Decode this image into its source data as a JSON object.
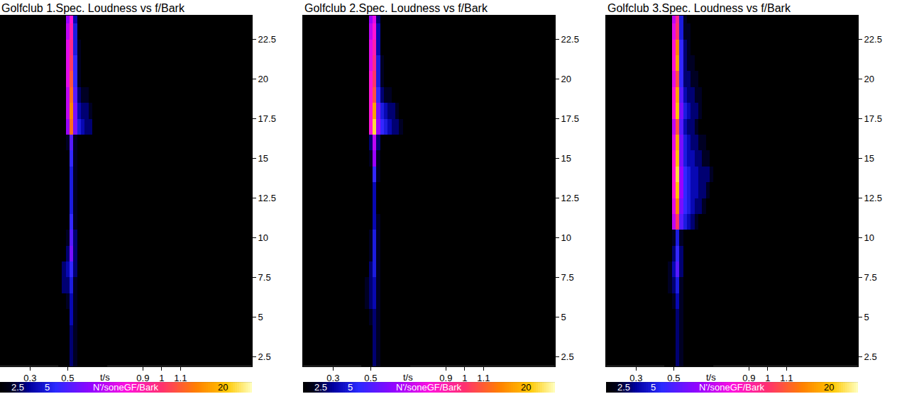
{
  "chart_data": [
    {
      "type": "heatmap",
      "title": "Golfclub 1.Spec. Loudness vs f/Bark",
      "x_label": "t/s",
      "x": [
        0.46,
        0.48,
        0.5,
        0.52,
        0.54,
        0.56,
        0.58,
        0.6,
        0.62,
        0.64,
        0.66,
        0.68,
        0.7
      ],
      "y": [
        2,
        3,
        4,
        5,
        6,
        7,
        8,
        9,
        10,
        11,
        12,
        13,
        14,
        15,
        16,
        17,
        18,
        19,
        20,
        21,
        22,
        23,
        24
      ],
      "z": [
        [
          0,
          0,
          0,
          3,
          2,
          0,
          0,
          0,
          0,
          0,
          0,
          0,
          0
        ],
        [
          0,
          0,
          0,
          3,
          2,
          0,
          0,
          0,
          0,
          0,
          0,
          0,
          0
        ],
        [
          0,
          0,
          1,
          3,
          2,
          0,
          0,
          0,
          0,
          0,
          0,
          0,
          0
        ],
        [
          0,
          0,
          1,
          4,
          2,
          0,
          0,
          0,
          0,
          0,
          0,
          0,
          0
        ],
        [
          0,
          1,
          2,
          4,
          2,
          0,
          0,
          0,
          0,
          0,
          0,
          0,
          0
        ],
        [
          0,
          3,
          3,
          5,
          2,
          1,
          0,
          0,
          0,
          0,
          0,
          0,
          0
        ],
        [
          0,
          3,
          4,
          6,
          3,
          1,
          0,
          0,
          0,
          0,
          0,
          0,
          0
        ],
        [
          0,
          1,
          3,
          8,
          3,
          1,
          0,
          0,
          0,
          0,
          0,
          0,
          0
        ],
        [
          0,
          0,
          2,
          7,
          3,
          0,
          0,
          0,
          0,
          0,
          0,
          0,
          0
        ],
        [
          0,
          0,
          1,
          6,
          2,
          0,
          0,
          0,
          0,
          0,
          0,
          0,
          0
        ],
        [
          0,
          0,
          1,
          5,
          2,
          0,
          0,
          0,
          0,
          0,
          0,
          0,
          0
        ],
        [
          0,
          0,
          1,
          5,
          2,
          0,
          0,
          0,
          0,
          0,
          0,
          0,
          0
        ],
        [
          0,
          0,
          1,
          5,
          2,
          0,
          0,
          0,
          0,
          0,
          0,
          0,
          0
        ],
        [
          0,
          0,
          1,
          6,
          2,
          0,
          0,
          0,
          0,
          0,
          0,
          0,
          0
        ],
        [
          0,
          0,
          2,
          7,
          2,
          0,
          0,
          0,
          0,
          0,
          0,
          0,
          0
        ],
        [
          0,
          0,
          9,
          17,
          8,
          5,
          4,
          3,
          3,
          0,
          0,
          0,
          0
        ],
        [
          0,
          0,
          10,
          18,
          8,
          4,
          3,
          3,
          2,
          0,
          0,
          0,
          0
        ],
        [
          0,
          0,
          10,
          17,
          7,
          3,
          2,
          2,
          0,
          0,
          0,
          0,
          0
        ],
        [
          0,
          0,
          11,
          16,
          6,
          2,
          0,
          0,
          0,
          0,
          0,
          0,
          0
        ],
        [
          0,
          0,
          11,
          15,
          6,
          2,
          0,
          0,
          0,
          0,
          0,
          0,
          0
        ],
        [
          0,
          0,
          11,
          14,
          5,
          2,
          0,
          0,
          0,
          0,
          0,
          0,
          0
        ],
        [
          0,
          0,
          10,
          13,
          5,
          1,
          0,
          0,
          0,
          0,
          0,
          0,
          0
        ],
        [
          0,
          0,
          9,
          12,
          4,
          1,
          0,
          0,
          0,
          0,
          0,
          0,
          0
        ]
      ],
      "xlim": [
        0.14,
        1.48
      ],
      "xticks": [
        0.3,
        0.5,
        0.9,
        1,
        1.1
      ],
      "ylim": [
        1.9,
        24
      ],
      "yticks": [
        2.5,
        5,
        7.5,
        10,
        12.5,
        15,
        17.5,
        20,
        22.5
      ],
      "colorbar": {
        "range": [
          1,
          22.5
        ],
        "ticks": [
          2.5,
          5,
          20
        ],
        "label": "N'/soneGF/Bark"
      }
    },
    {
      "type": "heatmap",
      "title": "Golfclub 2.Spec. Loudness vs f/Bark",
      "x_label": "t/s",
      "x": [
        0.46,
        0.48,
        0.5,
        0.52,
        0.54,
        0.56,
        0.58,
        0.6,
        0.62,
        0.64,
        0.66,
        0.68,
        0.7
      ],
      "y": [
        2,
        3,
        4,
        5,
        6,
        7,
        8,
        9,
        10,
        11,
        12,
        13,
        14,
        15,
        16,
        17,
        18,
        19,
        20,
        21,
        22,
        23,
        24
      ],
      "z": [
        [
          0,
          0,
          0,
          3,
          2,
          0,
          0,
          0,
          0,
          0,
          0,
          0,
          0
        ],
        [
          0,
          0,
          0,
          3,
          2,
          0,
          0,
          0,
          0,
          0,
          0,
          0,
          0
        ],
        [
          0,
          0,
          1,
          3,
          2,
          0,
          0,
          0,
          0,
          0,
          0,
          0,
          0
        ],
        [
          0,
          0,
          2,
          3,
          2,
          0,
          0,
          0,
          0,
          0,
          0,
          0,
          0
        ],
        [
          0,
          2,
          3,
          4,
          2,
          0,
          0,
          0,
          0,
          0,
          0,
          0,
          0
        ],
        [
          0,
          2,
          3,
          4,
          2,
          1,
          0,
          0,
          0,
          0,
          0,
          0,
          0
        ],
        [
          0,
          1,
          3,
          5,
          2,
          1,
          0,
          0,
          0,
          0,
          0,
          0,
          0
        ],
        [
          0,
          1,
          2,
          5,
          2,
          0,
          0,
          0,
          0,
          0,
          0,
          0,
          0
        ],
        [
          0,
          0,
          2,
          5,
          2,
          0,
          0,
          0,
          0,
          0,
          0,
          0,
          0
        ],
        [
          0,
          0,
          1,
          4,
          2,
          0,
          0,
          0,
          0,
          0,
          0,
          0,
          0
        ],
        [
          0,
          0,
          1,
          4,
          1,
          0,
          0,
          0,
          0,
          0,
          0,
          0,
          0
        ],
        [
          0,
          0,
          1,
          4,
          1,
          0,
          0,
          0,
          0,
          0,
          0,
          0,
          0
        ],
        [
          0,
          0,
          1,
          6,
          2,
          0,
          0,
          0,
          0,
          0,
          0,
          0,
          0
        ],
        [
          0,
          0,
          2,
          9,
          2,
          0,
          0,
          0,
          0,
          0,
          0,
          0,
          0
        ],
        [
          0,
          0,
          3,
          10,
          3,
          0,
          0,
          0,
          0,
          0,
          0,
          0,
          0
        ],
        [
          0,
          0,
          12,
          21,
          9,
          6,
          5,
          4,
          3,
          3,
          2,
          0,
          0
        ],
        [
          0,
          0,
          12,
          19,
          8,
          5,
          4,
          3,
          3,
          2,
          0,
          0,
          0
        ],
        [
          0,
          0,
          12,
          16,
          6,
          3,
          2,
          2,
          0,
          0,
          0,
          0,
          0
        ],
        [
          0,
          0,
          12,
          15,
          5,
          2,
          0,
          0,
          0,
          0,
          0,
          0,
          0
        ],
        [
          0,
          0,
          11,
          14,
          5,
          2,
          0,
          0,
          0,
          0,
          0,
          0,
          0
        ],
        [
          0,
          0,
          11,
          13,
          4,
          1,
          0,
          0,
          0,
          0,
          0,
          0,
          0
        ],
        [
          0,
          0,
          10,
          12,
          4,
          1,
          0,
          0,
          0,
          0,
          0,
          0,
          0
        ],
        [
          0,
          0,
          9,
          11,
          3,
          1,
          0,
          0,
          0,
          0,
          0,
          0,
          0
        ]
      ],
      "xlim": [
        0.14,
        1.48
      ],
      "xticks": [
        0.3,
        0.5,
        0.9,
        1,
        1.1
      ],
      "ylim": [
        1.9,
        24
      ],
      "yticks": [
        2.5,
        5,
        7.5,
        10,
        12.5,
        15,
        17.5,
        20,
        22.5
      ],
      "colorbar": {
        "range": [
          1,
          22.5
        ],
        "ticks": [
          2.5,
          5,
          20
        ],
        "label": "N'/soneGF/Bark"
      }
    },
    {
      "type": "heatmap",
      "title": "Golfclub 3.Spec. Loudness vs f/Bark",
      "x_label": "t/s",
      "x": [
        0.46,
        0.48,
        0.5,
        0.52,
        0.54,
        0.56,
        0.58,
        0.6,
        0.62,
        0.64,
        0.66,
        0.68,
        0.7
      ],
      "y": [
        2,
        3,
        4,
        5,
        6,
        7,
        8,
        9,
        10,
        11,
        12,
        13,
        14,
        15,
        16,
        17,
        18,
        19,
        20,
        21,
        22,
        23,
        24
      ],
      "z": [
        [
          0,
          0,
          0,
          3,
          2,
          0,
          0,
          0,
          0,
          0,
          0,
          0,
          0
        ],
        [
          0,
          0,
          0,
          3,
          2,
          0,
          0,
          0,
          0,
          0,
          0,
          0,
          0
        ],
        [
          0,
          0,
          1,
          3,
          2,
          0,
          0,
          0,
          0,
          0,
          0,
          0,
          0
        ],
        [
          0,
          0,
          1,
          3,
          2,
          0,
          0,
          0,
          0,
          0,
          0,
          0,
          0
        ],
        [
          0,
          1,
          2,
          4,
          2,
          0,
          0,
          0,
          0,
          0,
          0,
          0,
          0
        ],
        [
          0,
          2,
          3,
          5,
          2,
          1,
          0,
          0,
          0,
          0,
          0,
          0,
          0
        ],
        [
          0,
          2,
          4,
          7,
          3,
          1,
          0,
          0,
          0,
          0,
          0,
          0,
          0
        ],
        [
          0,
          1,
          3,
          6,
          3,
          1,
          0,
          0,
          0,
          0,
          0,
          0,
          0
        ],
        [
          0,
          0,
          2,
          5,
          2,
          1,
          0,
          0,
          0,
          0,
          0,
          0,
          0
        ],
        [
          0,
          0,
          10,
          15,
          7,
          5,
          4,
          3,
          2,
          0,
          0,
          0,
          0
        ],
        [
          0,
          0,
          11,
          18,
          8,
          6,
          5,
          4,
          3,
          3,
          2,
          0,
          0
        ],
        [
          0,
          0,
          12,
          20,
          9,
          6,
          5,
          4,
          4,
          3,
          3,
          2,
          0
        ],
        [
          0,
          0,
          12,
          21,
          9,
          6,
          5,
          4,
          4,
          3,
          3,
          3,
          2
        ],
        [
          0,
          0,
          12,
          20,
          8,
          5,
          4,
          4,
          3,
          3,
          2,
          2,
          0
        ],
        [
          0,
          0,
          11,
          19,
          8,
          5,
          4,
          3,
          3,
          2,
          2,
          0,
          0
        ],
        [
          0,
          0,
          10,
          16,
          7,
          4,
          3,
          3,
          2,
          0,
          0,
          0,
          0
        ],
        [
          0,
          0,
          12,
          20,
          8,
          5,
          4,
          3,
          3,
          2,
          0,
          0,
          0
        ],
        [
          0,
          0,
          12,
          19,
          7,
          4,
          3,
          3,
          2,
          2,
          0,
          0,
          0
        ],
        [
          0,
          0,
          11,
          16,
          6,
          3,
          3,
          2,
          2,
          0,
          0,
          0,
          0
        ],
        [
          0,
          0,
          12,
          19,
          6,
          3,
          2,
          2,
          0,
          0,
          0,
          0,
          0
        ],
        [
          0,
          0,
          12,
          18,
          6,
          3,
          2,
          0,
          0,
          0,
          0,
          0,
          0
        ],
        [
          0,
          0,
          11,
          15,
          5,
          2,
          2,
          0,
          0,
          0,
          0,
          0,
          0
        ],
        [
          0,
          0,
          10,
          14,
          5,
          2,
          0,
          0,
          0,
          0,
          0,
          0,
          0
        ]
      ],
      "xlim": [
        0.14,
        1.48
      ],
      "xticks": [
        0.3,
        0.5,
        0.9,
        1,
        1.1
      ],
      "ylim": [
        1.9,
        24
      ],
      "yticks": [
        2.5,
        5,
        7.5,
        10,
        12.5,
        15,
        17.5,
        20,
        22.5
      ],
      "colorbar": {
        "range": [
          1,
          22.5
        ],
        "ticks": [
          2.5,
          5,
          20
        ],
        "label": "N'/soneGF/Bark"
      }
    }
  ]
}
